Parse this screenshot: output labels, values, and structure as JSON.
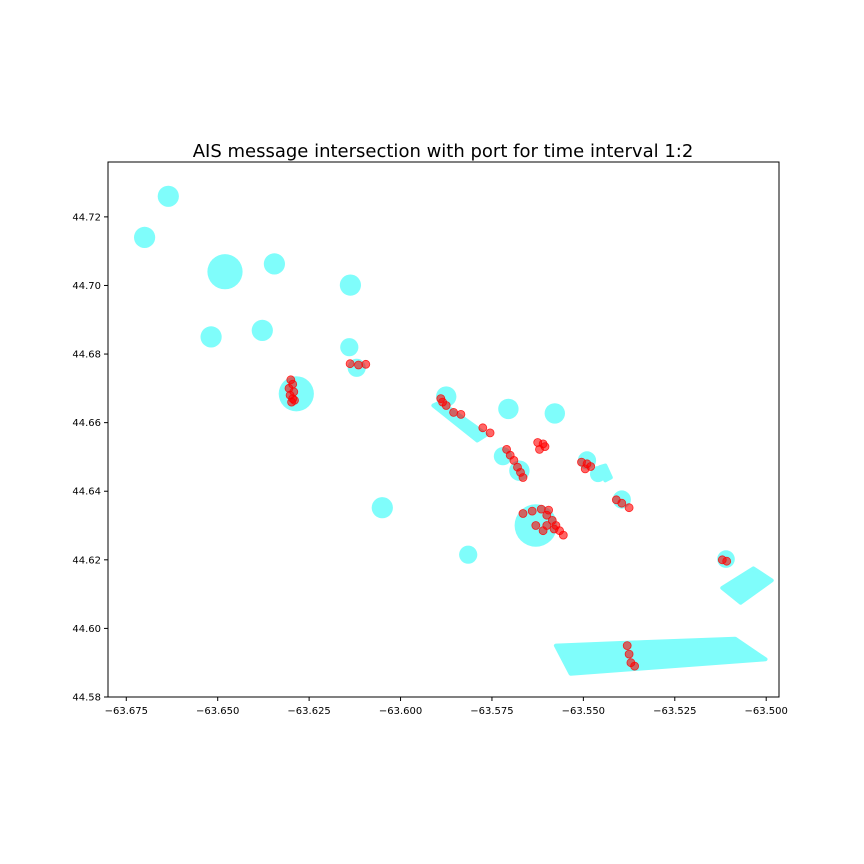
{
  "chart_data": {
    "type": "scatter",
    "title": "AIS message intersection with port for time interval 1:2",
    "xlabel": "",
    "ylabel": "",
    "xlim": [
      -63.68,
      -63.4965
    ],
    "ylim": [
      44.58,
      44.736
    ],
    "x_ticks": [
      -63.675,
      -63.65,
      -63.625,
      -63.6,
      -63.575,
      -63.55,
      -63.525,
      -63.5
    ],
    "x_tick_labels": [
      "−63.675",
      "−63.650",
      "−63.625",
      "−63.600",
      "−63.575",
      "−63.550",
      "−63.525",
      "−63.500"
    ],
    "y_ticks": [
      44.58,
      44.6,
      44.62,
      44.64,
      44.66,
      44.68,
      44.7,
      44.72
    ],
    "y_tick_labels": [
      "44.58",
      "44.60",
      "44.62",
      "44.64",
      "44.66",
      "44.68",
      "44.70",
      "44.72"
    ],
    "grid": false,
    "colors": {
      "port": "#7ffdfb",
      "message": "#ff0000"
    },
    "port_circles": [
      {
        "x": -63.6635,
        "y": 44.726,
        "r": 0.0029
      },
      {
        "x": -63.67,
        "y": 44.714,
        "r": 0.0029
      },
      {
        "x": -63.648,
        "y": 44.704,
        "r": 0.0048
      },
      {
        "x": -63.6345,
        "y": 44.7063,
        "r": 0.0029
      },
      {
        "x": -63.6137,
        "y": 44.7001,
        "r": 0.0029
      },
      {
        "x": -63.6378,
        "y": 44.6869,
        "r": 0.0029
      },
      {
        "x": -63.6518,
        "y": 44.685,
        "r": 0.0029
      },
      {
        "x": -63.614,
        "y": 44.682,
        "r": 0.0025
      },
      {
        "x": -63.612,
        "y": 44.676,
        "r": 0.0025
      },
      {
        "x": -63.6285,
        "y": 44.6684,
        "r": 0.0048
      },
      {
        "x": -63.5875,
        "y": 44.6676,
        "r": 0.0028
      },
      {
        "x": -63.5705,
        "y": 44.664,
        "r": 0.0028
      },
      {
        "x": -63.5578,
        "y": 44.6627,
        "r": 0.0028
      },
      {
        "x": -63.572,
        "y": 44.6502,
        "r": 0.0025
      },
      {
        "x": -63.5675,
        "y": 44.646,
        "r": 0.0028
      },
      {
        "x": -63.549,
        "y": 44.649,
        "r": 0.0025
      },
      {
        "x": -63.546,
        "y": 44.645,
        "r": 0.0022
      },
      {
        "x": -63.5395,
        "y": 44.6376,
        "r": 0.0025
      },
      {
        "x": -63.605,
        "y": 44.6352,
        "r": 0.0029
      },
      {
        "x": -63.563,
        "y": 44.63,
        "r": 0.0058
      },
      {
        "x": -63.5815,
        "y": 44.6215,
        "r": 0.0025
      },
      {
        "x": -63.511,
        "y": 44.6202,
        "r": 0.0024
      }
    ],
    "port_polygons": [
      {
        "points": [
          [
            -63.591,
            44.665
          ],
          [
            -63.589,
            44.666
          ],
          [
            -63.5765,
            44.6565
          ],
          [
            -63.579,
            44.6548
          ]
        ]
      },
      {
        "points": [
          [
            -63.5455,
            44.647
          ],
          [
            -63.544,
            44.6475
          ],
          [
            -63.5425,
            44.644
          ],
          [
            -63.544,
            44.6432
          ]
        ]
      },
      {
        "points": [
          [
            -63.512,
            44.6118
          ],
          [
            -63.5035,
            44.6175
          ],
          [
            -63.4985,
            44.614
          ],
          [
            -63.507,
            44.6075
          ]
        ]
      },
      {
        "points": [
          [
            -63.5575,
            44.595
          ],
          [
            -63.5335,
            44.596
          ],
          [
            -63.5085,
            44.597
          ],
          [
            -63.5002,
            44.591
          ],
          [
            -63.5535,
            44.5868
          ]
        ]
      }
    ],
    "message_points": [
      [
        -63.63,
        44.6725
      ],
      [
        -63.6295,
        44.6712
      ],
      [
        -63.6305,
        44.67
      ],
      [
        -63.6292,
        44.669
      ],
      [
        -63.6302,
        44.668
      ],
      [
        -63.6295,
        44.667
      ],
      [
        -63.6298,
        44.666
      ],
      [
        -63.629,
        44.6665
      ],
      [
        -63.6138,
        44.6772
      ],
      [
        -63.6115,
        44.6768
      ],
      [
        -63.6095,
        44.677
      ],
      [
        -63.589,
        44.667
      ],
      [
        -63.5885,
        44.666
      ],
      [
        -63.5875,
        44.665
      ],
      [
        -63.5855,
        44.663
      ],
      [
        -63.5835,
        44.6624
      ],
      [
        -63.5775,
        44.6585
      ],
      [
        -63.5755,
        44.657
      ],
      [
        -63.571,
        44.6522
      ],
      [
        -63.57,
        44.6505
      ],
      [
        -63.569,
        44.649
      ],
      [
        -63.568,
        44.647
      ],
      [
        -63.5672,
        44.6455
      ],
      [
        -63.5665,
        44.644
      ],
      [
        -63.5625,
        44.6542
      ],
      [
        -63.561,
        44.6538
      ],
      [
        -63.5605,
        44.653
      ],
      [
        -63.562,
        44.6522
      ],
      [
        -63.5505,
        44.6485
      ],
      [
        -63.549,
        44.648
      ],
      [
        -63.548,
        44.6472
      ],
      [
        -63.5495,
        44.6465
      ],
      [
        -63.541,
        44.6375
      ],
      [
        -63.5395,
        44.6365
      ],
      [
        -63.5375,
        44.6352
      ],
      [
        -63.5665,
        44.6335
      ],
      [
        -63.564,
        44.6342
      ],
      [
        -63.5615,
        44.6348
      ],
      [
        -63.5595,
        44.6345
      ],
      [
        -63.56,
        44.633
      ],
      [
        -63.5585,
        44.6315
      ],
      [
        -63.5575,
        44.63
      ],
      [
        -63.5565,
        44.6285
      ],
      [
        -63.5555,
        44.6272
      ],
      [
        -63.558,
        44.629
      ],
      [
        -63.56,
        44.63
      ],
      [
        -63.563,
        44.63
      ],
      [
        -63.561,
        44.6285
      ],
      [
        -63.512,
        44.62
      ],
      [
        -63.5108,
        44.6196
      ],
      [
        -63.538,
        44.595
      ],
      [
        -63.5375,
        44.5925
      ],
      [
        -63.537,
        44.59
      ],
      [
        -63.536,
        44.589
      ]
    ]
  }
}
